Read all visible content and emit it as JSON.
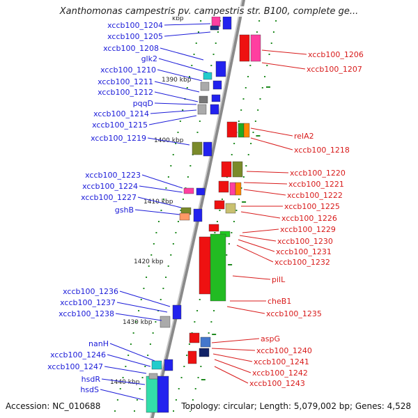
{
  "title": "Xanthomonas campestris pv. campestris str. B100, complete ge...",
  "footer": {
    "accession": "Accession: NC_010688",
    "summary": "Topology: circular; Length: 5,079,002 bp; Genes: 4,528"
  },
  "colors": {
    "left_label": "#1a1ad8",
    "right_label": "#d81a1a",
    "backbone": "#8a8a8a",
    "tick": "#1f8a1f"
  },
  "scale_labels": [
    "kbp",
    "1390 kbp",
    "1400 kbp",
    "1410 kbp",
    "1420 kbp",
    "1430 kbp",
    "1440 kbp"
  ],
  "left_genes": [
    "xccb100_1204",
    "xccb100_1205",
    "xccb100_1208",
    "glk2",
    "xccb100_1210",
    "xccb100_1211",
    "xccb100_1212",
    "pqqD",
    "xccb100_1214",
    "xccb100_1215",
    "xccb100_1219",
    "xccb100_1223",
    "xccb100_1224",
    "xccb100_1227",
    "gshB",
    "xccb100_1236",
    "xccb100_1237",
    "xccb100_1238",
    "nanH",
    "xccb100_1246",
    "xccb100_1247",
    "hsdR",
    "hsdS"
  ],
  "right_genes": [
    "xccb100_1206",
    "xccb100_1207",
    "relA2",
    "xccb100_1218",
    "xccb100_1220",
    "xccb100_1221",
    "xccb100_1222",
    "xccb100_1225",
    "xccb100_1226",
    "xccb100_1229",
    "xccb100_1230",
    "xccb100_1231",
    "xccb100_1232",
    "pilL",
    "cheB1",
    "xccb100_1235",
    "aspG",
    "xccb100_1240",
    "xccb100_1241",
    "xccb100_1242",
    "xccb100_1243"
  ]
}
